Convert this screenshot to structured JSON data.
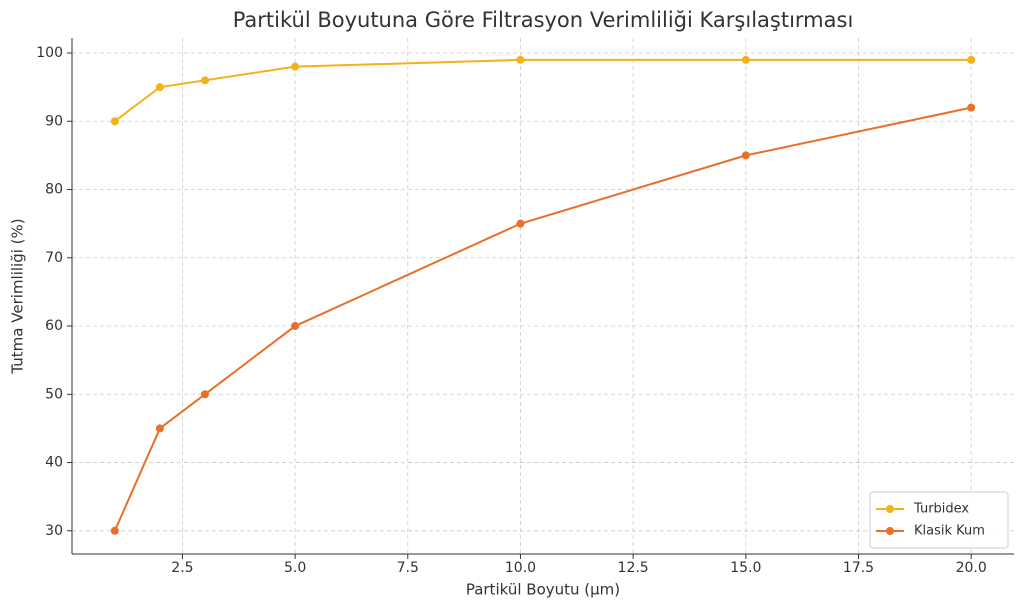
{
  "chart_data": {
    "type": "line",
    "title": "Partikül Boyutuna Göre Filtrasyon Verimliliği Karşılaştırması",
    "x_label": "Partikül Boyutu (µm)",
    "y_label": "Tutma Verimliliği (%)",
    "x": [
      1,
      2,
      3,
      5,
      10,
      15,
      20
    ],
    "series": [
      {
        "name": "Turbidex",
        "color": "#f5b119",
        "values": [
          90,
          95,
          96,
          98,
          99,
          99,
          99
        ]
      },
      {
        "name": "Klasik Kum",
        "color": "#e8702a",
        "values": [
          30,
          45,
          50,
          60,
          75,
          85,
          92
        ]
      }
    ],
    "xlim": [
      0.05,
      20.95
    ],
    "ylim": [
      26.6,
      102.2
    ],
    "xticks": [
      2.5,
      {
        "value": 5,
        "label": "5.0"
      },
      7.5,
      {
        "value": 10,
        "label": "10.0"
      },
      12.5,
      {
        "value": 15,
        "label": "15.0"
      },
      17.5,
      {
        "value": 20,
        "label": "20.0"
      }
    ],
    "yticks": [
      30,
      40,
      50,
      60,
      70,
      80,
      90,
      100
    ],
    "grid": true,
    "legend": "lower right"
  }
}
